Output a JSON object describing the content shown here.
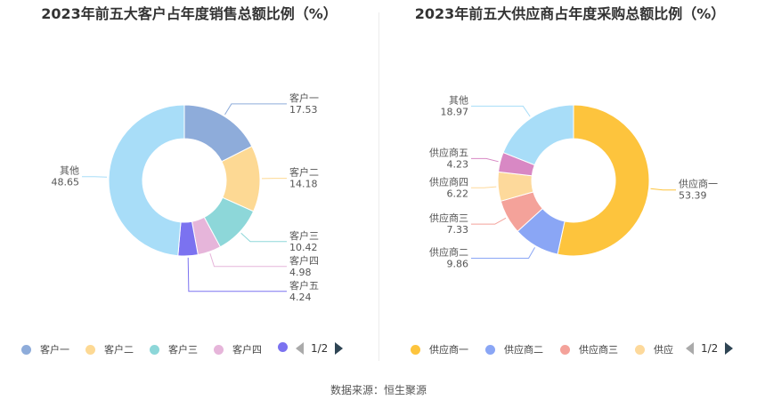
{
  "chart_data": [
    {
      "type": "pie",
      "title": "2023年前五大客户占年度销售总额比例（%）",
      "categories": [
        "客户一",
        "客户二",
        "客户三",
        "客户四",
        "客户五",
        "其他"
      ],
      "values": [
        17.53,
        14.18,
        10.42,
        4.98,
        4.24,
        48.65
      ],
      "value_labels": [
        "17.53",
        "14.18",
        "10.42",
        "4.98",
        "4.24",
        "48.65"
      ],
      "colors": [
        "#8eacda",
        "#fdd994",
        "#8dd7d9",
        "#e6b5da",
        "#7b72f0",
        "#a8ddf8"
      ],
      "legend": {
        "items": [
          "客户一",
          "客户二",
          "客户三",
          "客户四"
        ],
        "page": "1/2",
        "placement": "bottom"
      }
    },
    {
      "type": "pie",
      "title": "2023年前五大供应商占年度采购总额比例（%）",
      "categories": [
        "供应商一",
        "供应商二",
        "供应商三",
        "供应商四",
        "供应商五",
        "其他"
      ],
      "values": [
        53.39,
        9.86,
        7.33,
        6.22,
        4.23,
        18.97
      ],
      "value_labels": [
        "53.39",
        "9.86",
        "7.33",
        "6.22",
        "4.23",
        "18.97"
      ],
      "colors": [
        "#fdc43d",
        "#8aa6f5",
        "#f4a29a",
        "#fdd99b",
        "#d888c4",
        "#a8ddf8"
      ],
      "legend": {
        "items": [
          "供应商一",
          "供应商二",
          "供应商三",
          "供应"
        ],
        "page": "1/2",
        "placement": "bottom"
      }
    }
  ],
  "source": "数据来源：恒生聚源"
}
